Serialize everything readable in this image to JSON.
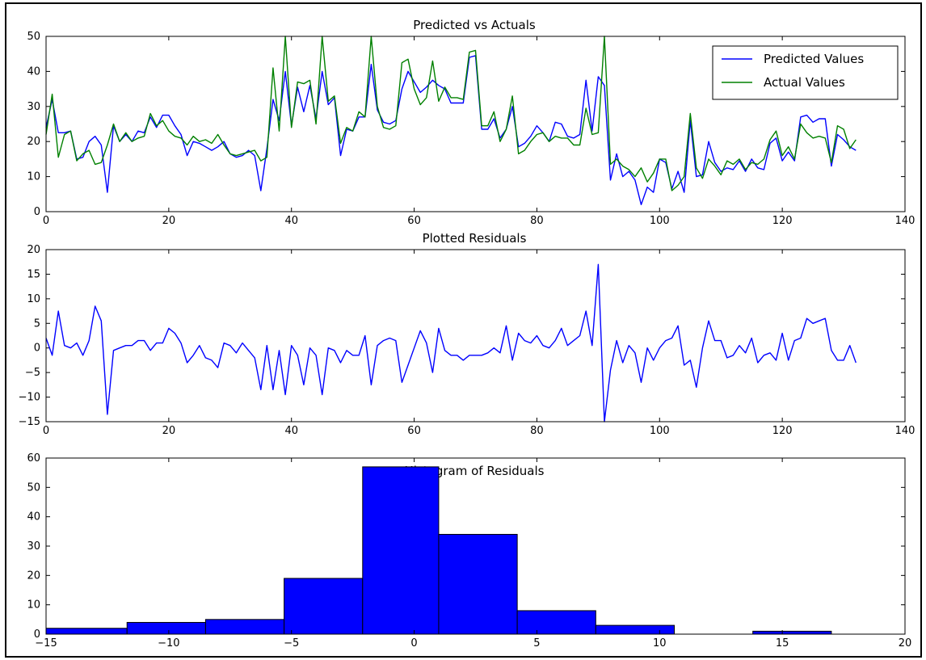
{
  "chart_data": [
    {
      "type": "line",
      "title": "Predicted vs Actuals",
      "xlabel": "",
      "ylabel": "",
      "xlim": [
        0,
        140
      ],
      "ylim": [
        0,
        50
      ],
      "xticks": [
        0,
        20,
        40,
        60,
        80,
        100,
        120,
        140
      ],
      "yticks": [
        0,
        10,
        20,
        30,
        40,
        50
      ],
      "grid": false,
      "legend_position": "top-right",
      "x": [
        0,
        1,
        2,
        3,
        4,
        5,
        6,
        7,
        8,
        9,
        10,
        11,
        12,
        13,
        14,
        15,
        16,
        17,
        18,
        19,
        20,
        21,
        22,
        23,
        24,
        25,
        26,
        27,
        28,
        29,
        30,
        31,
        32,
        33,
        34,
        35,
        36,
        37,
        38,
        39,
        40,
        41,
        42,
        43,
        44,
        45,
        46,
        47,
        48,
        49,
        50,
        51,
        52,
        53,
        54,
        55,
        56,
        57,
        58,
        59,
        60,
        61,
        62,
        63,
        64,
        65,
        66,
        67,
        68,
        69,
        70,
        71,
        72,
        73,
        74,
        75,
        76,
        77,
        78,
        79,
        80,
        81,
        82,
        83,
        84,
        85,
        86,
        87,
        88,
        89,
        90,
        91,
        92,
        93,
        94,
        95,
        96,
        97,
        98,
        99,
        100,
        101,
        102,
        103,
        104,
        105,
        106,
        107,
        108,
        109,
        110,
        111,
        112,
        113,
        114,
        115,
        116,
        117,
        118,
        119,
        120,
        121,
        122,
        123,
        124,
        125,
        126,
        127,
        128,
        129,
        130,
        131,
        132
      ],
      "series": [
        {
          "name": "Predicted Values",
          "color": "#0000ff",
          "values": [
            24,
            32,
            22.5,
            22.5,
            23,
            15,
            15.5,
            20,
            21.5,
            19,
            5.5,
            24.5,
            20,
            22,
            20,
            23,
            22.5,
            27,
            24,
            27.5,
            27.5,
            24.5,
            22,
            16,
            20,
            19.5,
            18.5,
            17.5,
            18.5,
            20,
            16.5,
            15.5,
            16,
            17.5,
            16,
            6,
            18,
            32,
            26,
            40,
            24.5,
            35.5,
            28.5,
            36,
            26.5,
            40,
            30.5,
            32.5,
            16,
            23.5,
            23,
            27,
            27,
            42,
            29,
            25.5,
            25,
            26,
            35,
            40,
            37,
            34,
            35.5,
            37.5,
            36,
            35,
            31,
            31,
            31,
            44,
            44.5,
            23.5,
            23.5,
            26.5,
            21,
            23.5,
            30,
            18.5,
            19.5,
            21.5,
            24.5,
            22.5,
            20,
            25.5,
            25,
            21.5,
            21,
            22,
            37.5,
            23,
            38.5,
            36,
            9,
            16.5,
            10,
            11.5,
            9,
            2,
            7,
            5.5,
            15,
            14,
            6.5,
            11.5,
            5.5,
            26,
            10,
            10.5,
            20,
            14,
            11.5,
            12.5,
            12,
            14.5,
            11.5,
            15,
            12.5,
            12,
            19.5,
            21,
            14.5,
            17,
            14.5,
            27,
            27.5,
            25.5,
            26.5,
            26.5,
            13,
            22,
            20.5,
            18.5,
            17.5
          ]
        },
        {
          "name": "Actual Values",
          "color": "#008000",
          "values": [
            22,
            33.5,
            15.5,
            22,
            23,
            14.5,
            16.5,
            17.5,
            13.5,
            14,
            19,
            25,
            20,
            22.5,
            20,
            21,
            21.5,
            28,
            24.5,
            26,
            23,
            21.5,
            21,
            19,
            21.5,
            20,
            20.5,
            19.5,
            22,
            19,
            16.5,
            16,
            16.5,
            17,
            17.5,
            14.5,
            15.5,
            41,
            23,
            50,
            24,
            37,
            36.5,
            37.5,
            25,
            50,
            31.5,
            33,
            19.5,
            24,
            23,
            28.5,
            27,
            50,
            30,
            24,
            23.5,
            24.5,
            42.5,
            43.5,
            35,
            30.5,
            32.5,
            43,
            31.5,
            35.5,
            32.5,
            32.5,
            32,
            45.5,
            46,
            24.5,
            24.5,
            28.5,
            20,
            23.5,
            33,
            16.5,
            17.5,
            20,
            22,
            22.5,
            20,
            21.5,
            21,
            21,
            19,
            19,
            29.5,
            22,
            22.5,
            50,
            13.5,
            15,
            13,
            12,
            10,
            12.5,
            8.5,
            11,
            15,
            15,
            6,
            7.5,
            10,
            28,
            12.5,
            9.5,
            15,
            13,
            10.5,
            14.5,
            13.5,
            15,
            12,
            14,
            13.5,
            15,
            20.5,
            23,
            16,
            18.5,
            15,
            25,
            22.5,
            21,
            21.5,
            21,
            14,
            24.5,
            23.5,
            18,
            20.5
          ]
        }
      ]
    },
    {
      "type": "line",
      "title": "Plotted Residuals",
      "xlabel": "",
      "ylabel": "",
      "xlim": [
        0,
        140
      ],
      "ylim": [
        -15,
        20
      ],
      "xticks": [
        0,
        20,
        40,
        60,
        80,
        100,
        120,
        140
      ],
      "yticks": [
        -15,
        -10,
        -5,
        0,
        5,
        10,
        15,
        20
      ],
      "grid": false,
      "x": [
        0,
        1,
        2,
        3,
        4,
        5,
        6,
        7,
        8,
        9,
        10,
        11,
        12,
        13,
        14,
        15,
        16,
        17,
        18,
        19,
        20,
        21,
        22,
        23,
        24,
        25,
        26,
        27,
        28,
        29,
        30,
        31,
        32,
        33,
        34,
        35,
        36,
        37,
        38,
        39,
        40,
        41,
        42,
        43,
        44,
        45,
        46,
        47,
        48,
        49,
        50,
        51,
        52,
        53,
        54,
        55,
        56,
        57,
        58,
        59,
        60,
        61,
        62,
        63,
        64,
        65,
        66,
        67,
        68,
        69,
        70,
        71,
        72,
        73,
        74,
        75,
        76,
        77,
        78,
        79,
        80,
        81,
        82,
        83,
        84,
        85,
        86,
        87,
        88,
        89,
        90,
        91,
        92,
        93,
        94,
        95,
        96,
        97,
        98,
        99,
        100,
        101,
        102,
        103,
        104,
        105,
        106,
        107,
        108,
        109,
        110,
        111,
        112,
        113,
        114,
        115,
        116,
        117,
        118,
        119,
        120,
        121,
        122,
        123,
        124,
        125,
        126,
        127,
        128,
        129,
        130,
        131,
        132
      ],
      "series": [
        {
          "name": "",
          "color": "#0000ff",
          "values": [
            2,
            -1.5,
            7.5,
            0.5,
            0,
            1,
            -1.5,
            1.5,
            8.5,
            5.5,
            -13.5,
            -0.5,
            0,
            0.5,
            0.5,
            1.5,
            1.5,
            -0.5,
            1,
            1,
            4,
            3,
            1,
            -3,
            -1.5,
            0.5,
            -2,
            -2.5,
            -4,
            1,
            0.5,
            -1,
            1,
            -0.5,
            -2,
            -8.5,
            0.5,
            -8.5,
            -0.5,
            -9.5,
            0.5,
            -1.5,
            -7.5,
            0,
            -1.5,
            -9.5,
            0,
            -0.5,
            -3,
            -0.5,
            -1.5,
            -1.5,
            2.5,
            -7.5,
            0.5,
            1.5,
            2,
            1.5,
            -7,
            -3.5,
            0,
            3.5,
            1,
            -5,
            4,
            -0.5,
            -1.5,
            -1.5,
            -2.5,
            -1.5,
            -1.5,
            -1.5,
            -1,
            0,
            -1,
            4.5,
            -2.5,
            3,
            1.5,
            1,
            2.5,
            0.5,
            0,
            1.5,
            4,
            0.5,
            1.5,
            2.5,
            7.5,
            0.5,
            17,
            -15,
            -4.5,
            1.5,
            -3,
            0.5,
            -1,
            -7,
            0,
            -2.5,
            0,
            1.5,
            2,
            4.5,
            -3.5,
            -2.5,
            -8,
            0,
            5.5,
            1.5,
            1.5,
            -2,
            -1.5,
            0.5,
            -1,
            2,
            -3,
            -1.5,
            -1,
            -2.5,
            3,
            -2.5,
            1.5,
            2,
            6,
            5,
            5.5,
            6,
            -0.5,
            -2.5,
            -2.5,
            0.5,
            -3
          ]
        }
      ]
    },
    {
      "type": "bar",
      "title": "Histogram of Residuals",
      "xlabel": "",
      "ylabel": "",
      "xlim": [
        -15,
        20
      ],
      "ylim": [
        0,
        60
      ],
      "xticks": [
        -15,
        -10,
        -5,
        0,
        5,
        10,
        15,
        20
      ],
      "yticks": [
        0,
        10,
        20,
        30,
        40,
        50,
        60
      ],
      "grid": false,
      "color": "#0000ff",
      "bin_edges": [
        -15,
        -11.7,
        -8.5,
        -5.3,
        -2.1,
        1.0,
        4.2,
        7.4,
        10.6,
        13.8,
        17.0
      ],
      "values": [
        2,
        4,
        5,
        19,
        57,
        34,
        8,
        3,
        0,
        1
      ]
    }
  ]
}
